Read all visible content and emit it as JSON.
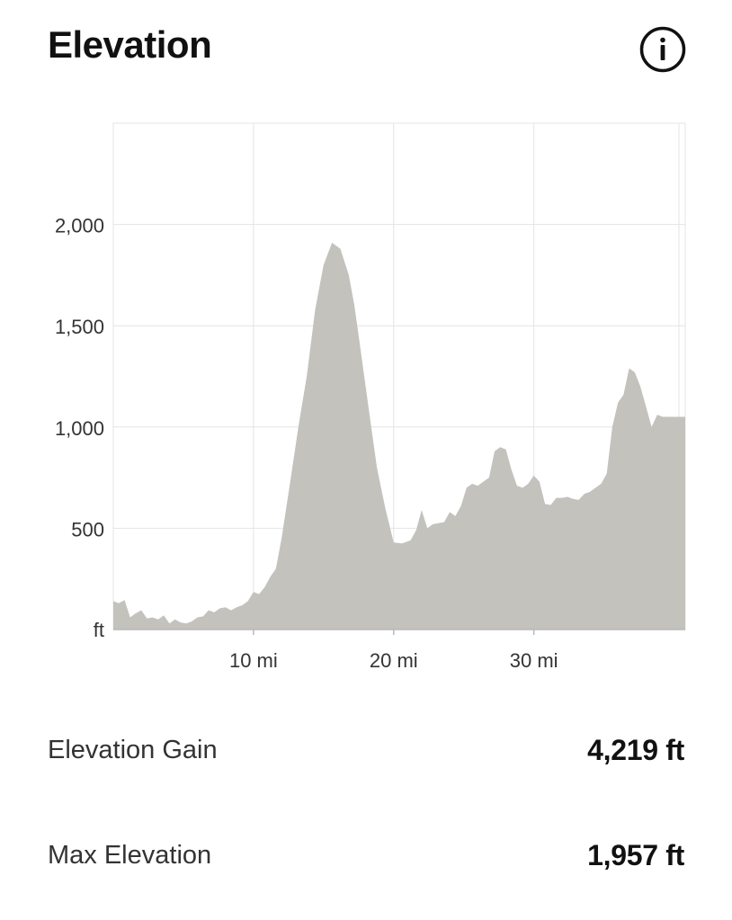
{
  "header": {
    "title": "Elevation",
    "info_icon": "info-circle-icon"
  },
  "chart_data": {
    "type": "area",
    "title": "Elevation",
    "xlabel": "",
    "ylabel": "ft",
    "x_unit": "mi",
    "xlim": [
      0,
      40.8
    ],
    "ylim": [
      0,
      2500
    ],
    "x_ticks": [
      10,
      20,
      30
    ],
    "x_tick_labels": [
      "10 mi",
      "20 mi",
      "30 mi"
    ],
    "y_ticks": [
      500,
      1000,
      1500,
      2000
    ],
    "y_tick_labels": [
      "500",
      "1,000",
      "1,500",
      "2,000"
    ],
    "y_zero_label": "ft",
    "grid": true,
    "fill_color": "#c3c2bd",
    "grid_color": "#e4e4e4",
    "series": [
      {
        "x": [
          0,
          0.4,
          0.8,
          1.2,
          1.6,
          2.0,
          2.4,
          2.8,
          3.2,
          3.6,
          4.0,
          4.4,
          4.8,
          5.2,
          5.6,
          6.0,
          6.4,
          6.8,
          7.2,
          7.6,
          8.0,
          8.4,
          8.8,
          9.2,
          9.6,
          10.0,
          10.4,
          10.8,
          11.2,
          11.6,
          12.0,
          12.6,
          13.2,
          13.8,
          14.4,
          15.0,
          15.6,
          16.2,
          16.8,
          17.2,
          17.6,
          18.2,
          18.8,
          19.4,
          20.0,
          20.6,
          21.2,
          21.6,
          22.0,
          22.4,
          22.8,
          23.2,
          23.6,
          24.0,
          24.4,
          24.8,
          25.2,
          25.6,
          26.0,
          26.4,
          26.8,
          27.2,
          27.6,
          28.0,
          28.4,
          28.8,
          29.2,
          29.6,
          30.0,
          30.4,
          30.8,
          31.2,
          31.6,
          32.0,
          32.4,
          32.8,
          33.2,
          33.6,
          34.0,
          34.4,
          34.8,
          35.2,
          35.6,
          36.0,
          36.4,
          36.8,
          37.2,
          37.6,
          38.0,
          38.4,
          38.8,
          39.2,
          39.6,
          40.0,
          40.4,
          40.8
        ],
        "values": [
          140,
          130,
          145,
          60,
          80,
          95,
          55,
          60,
          50,
          70,
          30,
          50,
          35,
          30,
          40,
          60,
          65,
          95,
          85,
          105,
          110,
          95,
          110,
          120,
          140,
          185,
          175,
          210,
          260,
          300,
          450,
          720,
          1000,
          1250,
          1580,
          1800,
          1910,
          1880,
          1750,
          1600,
          1400,
          1100,
          800,
          600,
          430,
          425,
          440,
          490,
          590,
          500,
          520,
          525,
          530,
          580,
          560,
          610,
          700,
          720,
          710,
          730,
          750,
          880,
          900,
          890,
          790,
          710,
          700,
          720,
          760,
          730,
          620,
          615,
          650,
          650,
          655,
          645,
          640,
          670,
          680,
          700,
          720,
          770,
          1000,
          1120,
          1160,
          1290,
          1270,
          1200,
          1100,
          1000,
          1060,
          1050,
          1050,
          1050,
          1050,
          1050
        ]
      }
    ]
  },
  "stats": {
    "gain_label": "Elevation Gain",
    "gain_value": "4,219 ft",
    "max_label": "Max Elevation",
    "max_value": "1,957 ft"
  }
}
